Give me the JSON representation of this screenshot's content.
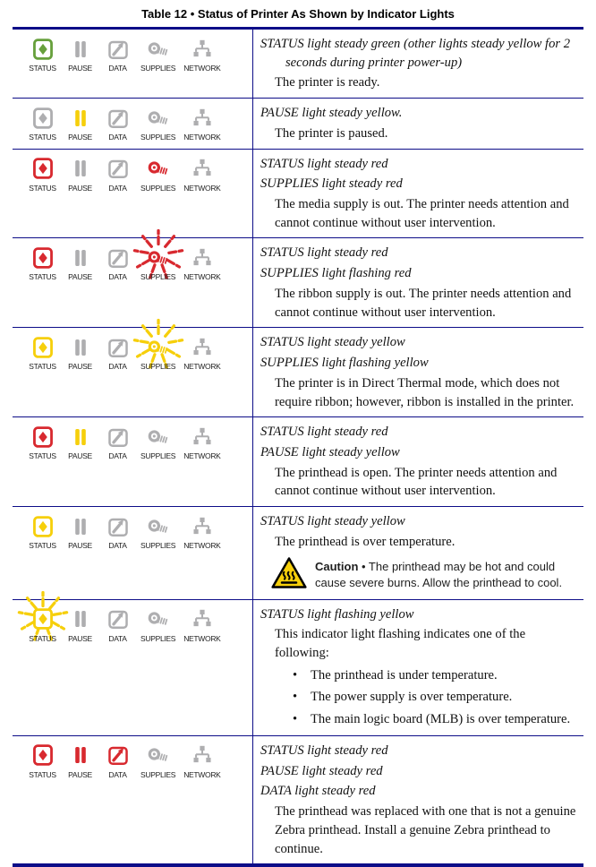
{
  "title": "Table 12 • Status of Printer As Shown by Indicator Lights",
  "colors": {
    "green": "#67a03c",
    "yellow": "#f6cf0b",
    "red": "#d8292f",
    "gray": "#aeaeb0",
    "line_navy": "#0d0d88",
    "caution_yellow": "#f6cf0b"
  },
  "rows": [
    {
      "lights": [
        {
          "label": "STATUS",
          "color": "green",
          "flashing": false
        },
        {
          "label": "PAUSE",
          "color": "gray",
          "flashing": false
        },
        {
          "label": "DATA",
          "color": "gray",
          "flashing": false
        },
        {
          "label": "SUPPLIES",
          "color": "gray",
          "flashing": false
        },
        {
          "label": "NETWORK",
          "color": "gray",
          "flashing": false
        }
      ],
      "conditions": [
        "STATUS light steady green (other lights steady yellow for 2 seconds during printer power-up)"
      ],
      "descriptions": [
        "The printer is ready."
      ]
    },
    {
      "lights": [
        {
          "label": "STATUS",
          "color": "gray",
          "flashing": false
        },
        {
          "label": "PAUSE",
          "color": "yellow",
          "flashing": false
        },
        {
          "label": "DATA",
          "color": "gray",
          "flashing": false
        },
        {
          "label": "SUPPLIES",
          "color": "gray",
          "flashing": false
        },
        {
          "label": "NETWORK",
          "color": "gray",
          "flashing": false
        }
      ],
      "conditions": [
        "PAUSE light steady yellow."
      ],
      "descriptions": [
        "The printer is paused."
      ]
    },
    {
      "lights": [
        {
          "label": "STATUS",
          "color": "red",
          "flashing": false
        },
        {
          "label": "PAUSE",
          "color": "gray",
          "flashing": false
        },
        {
          "label": "DATA",
          "color": "gray",
          "flashing": false
        },
        {
          "label": "SUPPLIES",
          "color": "red",
          "flashing": false
        },
        {
          "label": "NETWORK",
          "color": "gray",
          "flashing": false
        }
      ],
      "conditions": [
        "STATUS light steady red",
        "SUPPLIES light steady red"
      ],
      "descriptions": [
        "The media supply is out. The printer needs attention and cannot continue without user intervention."
      ]
    },
    {
      "lights": [
        {
          "label": "STATUS",
          "color": "red",
          "flashing": false
        },
        {
          "label": "PAUSE",
          "color": "gray",
          "flashing": false
        },
        {
          "label": "DATA",
          "color": "gray",
          "flashing": false
        },
        {
          "label": "SUPPLIES",
          "color": "red",
          "flashing": true
        },
        {
          "label": "NETWORK",
          "color": "gray",
          "flashing": false
        }
      ],
      "conditions": [
        "STATUS light steady red",
        "SUPPLIES light flashing red"
      ],
      "descriptions": [
        "The ribbon supply is out. The printer needs attention and cannot continue without user intervention."
      ]
    },
    {
      "lights": [
        {
          "label": "STATUS",
          "color": "yellow",
          "flashing": false
        },
        {
          "label": "PAUSE",
          "color": "gray",
          "flashing": false
        },
        {
          "label": "DATA",
          "color": "gray",
          "flashing": false
        },
        {
          "label": "SUPPLIES",
          "color": "yellow",
          "flashing": true
        },
        {
          "label": "NETWORK",
          "color": "gray",
          "flashing": false
        }
      ],
      "conditions": [
        "STATUS light steady yellow",
        "SUPPLIES light flashing yellow"
      ],
      "descriptions": [
        "The printer is in Direct Thermal mode, which does not require ribbon; however, ribbon is installed in the printer."
      ]
    },
    {
      "lights": [
        {
          "label": "STATUS",
          "color": "red",
          "flashing": false
        },
        {
          "label": "PAUSE",
          "color": "yellow",
          "flashing": false
        },
        {
          "label": "DATA",
          "color": "gray",
          "flashing": false
        },
        {
          "label": "SUPPLIES",
          "color": "gray",
          "flashing": false
        },
        {
          "label": "NETWORK",
          "color": "gray",
          "flashing": false
        }
      ],
      "conditions": [
        "STATUS light steady red",
        "PAUSE light steady yellow"
      ],
      "descriptions": [
        "The printhead is open. The printer needs attention and cannot continue without user intervention."
      ]
    },
    {
      "lights": [
        {
          "label": "STATUS",
          "color": "yellow",
          "flashing": false
        },
        {
          "label": "PAUSE",
          "color": "gray",
          "flashing": false
        },
        {
          "label": "DATA",
          "color": "gray",
          "flashing": false
        },
        {
          "label": "SUPPLIES",
          "color": "gray",
          "flashing": false
        },
        {
          "label": "NETWORK",
          "color": "gray",
          "flashing": false
        }
      ],
      "conditions": [
        "STATUS light steady yellow"
      ],
      "descriptions": [
        "The printhead is over temperature."
      ],
      "caution": {
        "label": "Caution",
        "bullet": "•",
        "text": "The printhead may be hot and could cause severe burns. Allow the printhead to cool."
      }
    },
    {
      "lights": [
        {
          "label": "STATUS",
          "color": "yellow",
          "flashing": true
        },
        {
          "label": "PAUSE",
          "color": "gray",
          "flashing": false
        },
        {
          "label": "DATA",
          "color": "gray",
          "flashing": false
        },
        {
          "label": "SUPPLIES",
          "color": "gray",
          "flashing": false
        },
        {
          "label": "NETWORK",
          "color": "gray",
          "flashing": false
        }
      ],
      "conditions": [
        "STATUS light flashing yellow"
      ],
      "descriptions": [
        "This indicator light flashing indicates one of the following:"
      ],
      "bullets": [
        "The printhead is under temperature.",
        "The power supply is over temperature.",
        "The main logic board (MLB) is over temperature."
      ]
    },
    {
      "lights": [
        {
          "label": "STATUS",
          "color": "red",
          "flashing": false
        },
        {
          "label": "PAUSE",
          "color": "red",
          "flashing": false
        },
        {
          "label": "DATA",
          "color": "red",
          "flashing": false
        },
        {
          "label": "SUPPLIES",
          "color": "gray",
          "flashing": false
        },
        {
          "label": "NETWORK",
          "color": "gray",
          "flashing": false
        }
      ],
      "conditions": [
        "STATUS light steady red",
        "PAUSE light steady red",
        "DATA light steady red"
      ],
      "descriptions": [
        "The printhead was replaced with one that is not a genuine Zebra printhead. Install a genuine Zebra printhead to continue."
      ]
    }
  ]
}
